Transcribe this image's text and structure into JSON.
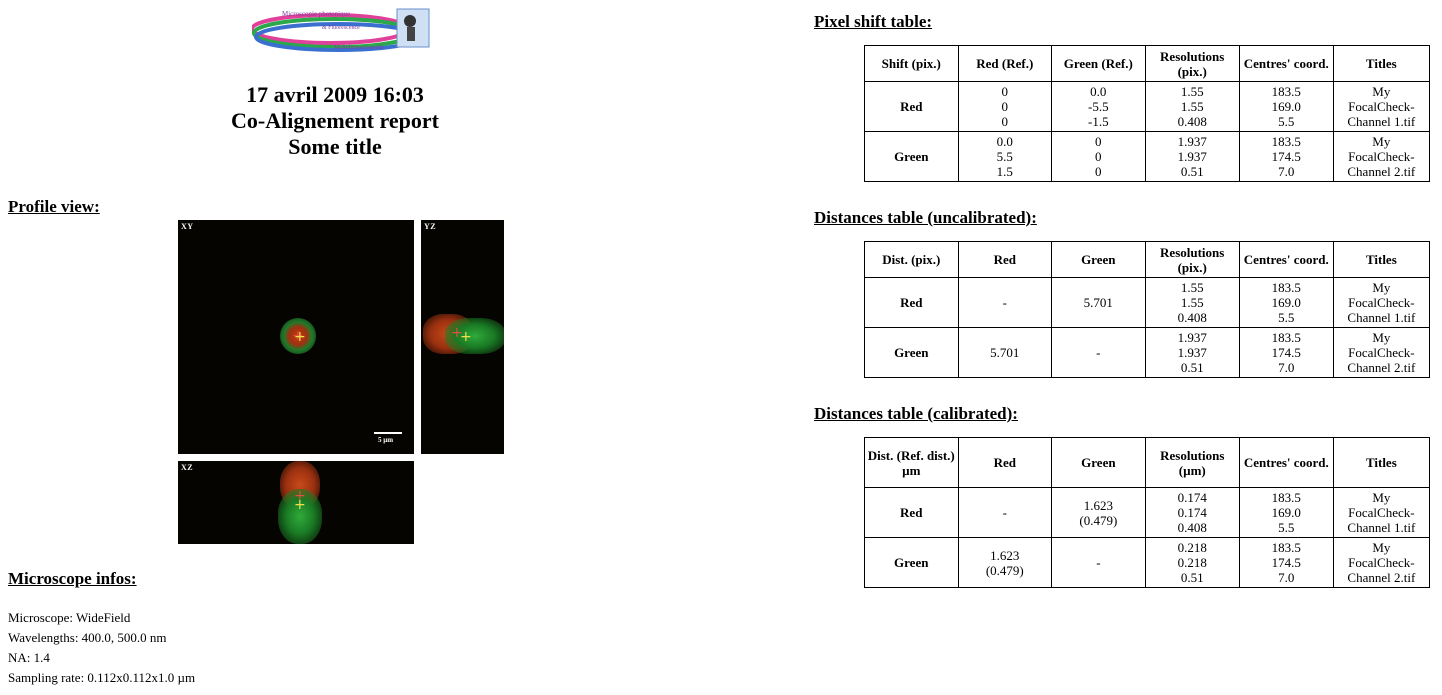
{
  "header": {
    "logo_text": [
      "Microscopie photonique",
      "& Fluorescence",
      "Multidimensionnelle"
    ],
    "date": "17 avril 2009 16:03",
    "report_title": "Co-Alignement report",
    "subtitle": "Some title"
  },
  "profile": {
    "title": "Profile view:",
    "xy_label": "XY",
    "yz_label": "YZ",
    "xz_label": "XZ",
    "scale_label": "5 µm",
    "cross_glyph": "+"
  },
  "microscope": {
    "title": "Microscope infos:",
    "lines": [
      "Microscope: WideField",
      "Wavelengths: 400.0, 500.0 nm",
      "NA: 1.4",
      "Sampling rate: 0.112x0.112x1.0 µm"
    ]
  },
  "pixel_table": {
    "title": "Pixel shift table:",
    "headers": [
      "Shift (pix.)",
      "Red (Ref.)",
      "Green (Ref.)",
      "Resolutions (pix.)",
      "Centres' coord.",
      "Titles"
    ],
    "rows": [
      {
        "label": "Red",
        "c1": "0\n0\n0",
        "c2": "0.0\n-5.5\n-1.5",
        "res": "1.55\n1.55\n0.408",
        "coord": "183.5\n169.0\n5.5",
        "title": "My\nFocalCheck-\nChannel 1.tif"
      },
      {
        "label": "Green",
        "c1": "0.0\n5.5\n1.5",
        "c2": "0\n0\n0",
        "res": "1.937\n1.937\n0.51",
        "coord": "183.5\n174.5\n7.0",
        "title": "My\nFocalCheck-\nChannel 2.tif"
      }
    ]
  },
  "uncal_table": {
    "title": "Distances table (uncalibrated):",
    "headers": [
      "Dist. (pix.)",
      "Red",
      "Green",
      "Resolutions (pix.)",
      "Centres' coord.",
      "Titles"
    ],
    "rows": [
      {
        "label": "Red",
        "c1": "-",
        "c2": "5.701",
        "res": "1.55\n1.55\n0.408",
        "coord": "183.5\n169.0\n5.5",
        "title": "My\nFocalCheck-\nChannel 1.tif"
      },
      {
        "label": "Green",
        "c1": "5.701",
        "c2": "-",
        "res": "1.937\n1.937\n0.51",
        "coord": "183.5\n174.5\n7.0",
        "title": "My\nFocalCheck-\nChannel 2.tif"
      }
    ]
  },
  "cal_table": {
    "title": "Distances table (calibrated):",
    "headers": [
      "Dist. (Ref. dist.) µm",
      "Red",
      "Green",
      "Resolutions (µm)",
      "Centres' coord.",
      "Titles"
    ],
    "rows": [
      {
        "label": "Red",
        "c1": "-",
        "c2": "1.623\n(0.479)",
        "res": "0.174\n0.174\n0.408",
        "coord": "183.5\n169.0\n5.5",
        "title": "My\nFocalCheck-\nChannel 1.tif"
      },
      {
        "label": "Green",
        "c1": "1.623\n(0.479)",
        "c2": "-",
        "res": "0.218\n0.218\n0.51",
        "coord": "183.5\n174.5\n7.0",
        "title": "My\nFocalCheck-\nChannel 2.tif"
      }
    ]
  },
  "colors": {
    "red_channel": "#c0392b",
    "green_channel": "#2ecc40",
    "image_bg": "#050400"
  }
}
